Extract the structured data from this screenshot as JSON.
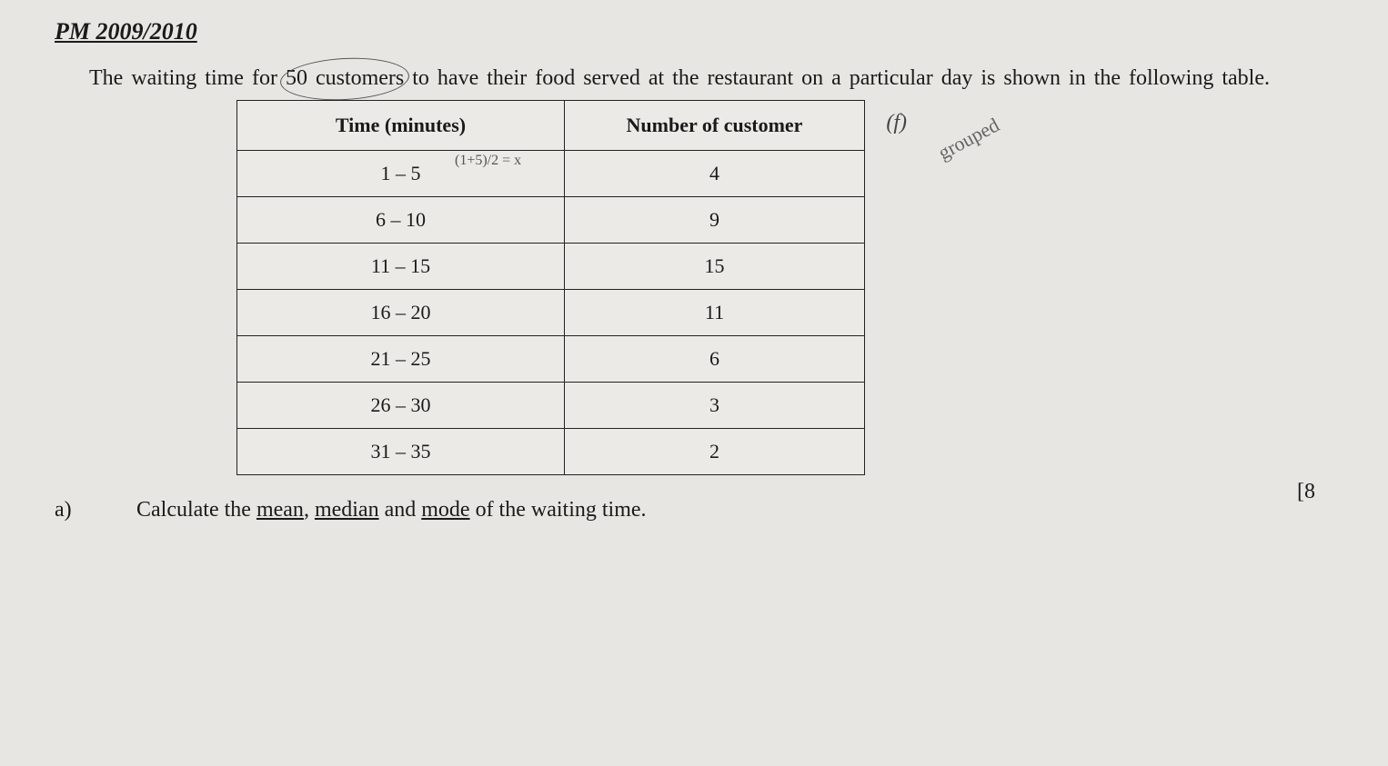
{
  "header": "PM 2009/2010",
  "intro_part1": "The waiting time for ",
  "intro_circled": "50 customers",
  "intro_part2": " to have their food served at the restaurant on a particular day is shown in the following table.",
  "table": {
    "columns": [
      "Time (minutes)",
      "Number of customer"
    ],
    "rows": [
      [
        "1 – 5",
        "4"
      ],
      [
        "6 – 10",
        "9"
      ],
      [
        "11 – 15",
        "15"
      ],
      [
        "16 – 20",
        "11"
      ],
      [
        "21 – 25",
        "6"
      ],
      [
        "26 – 30",
        "3"
      ],
      [
        "31 – 35",
        "2"
      ]
    ]
  },
  "annotations": {
    "f": "(f)",
    "grouped": "grouped",
    "midpoint": "(1+5)/2 = x"
  },
  "question": {
    "label": "a)",
    "prefix": "Calculate the ",
    "u1": "mean",
    "sep1": ", ",
    "u2": "median",
    "sep2": " and ",
    "u3": "mode",
    "suffix": " of the waiting time."
  },
  "marks": "[8"
}
